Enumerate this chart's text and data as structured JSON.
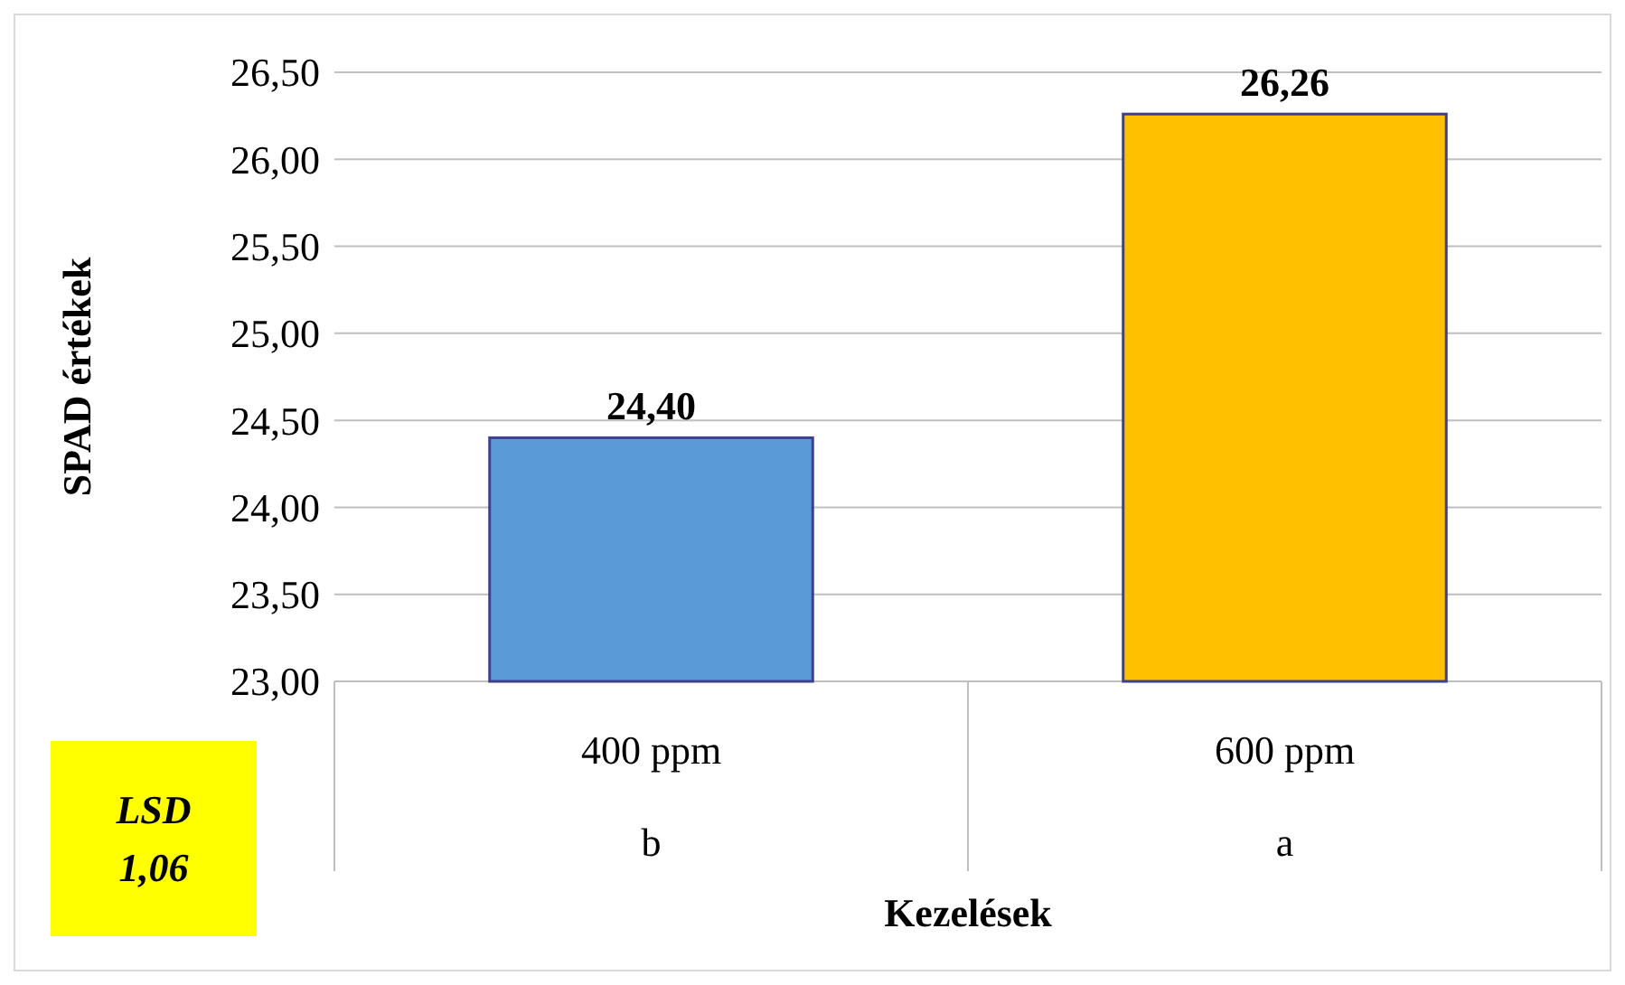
{
  "chart_data": {
    "type": "bar",
    "ylabel": "SPAD értékek",
    "xlabel": "Kezelések",
    "categories": [
      "400 ppm",
      "600 ppm"
    ],
    "values": [
      24.4,
      26.26
    ],
    "colors": [
      "#5b9bd5",
      "#ffc000"
    ],
    "value_labels": [
      "24,40",
      "26,26"
    ],
    "ylim": [
      23,
      26.5
    ],
    "yticks": [
      {
        "value": 23,
        "label": "23,00"
      },
      {
        "value": 23.5,
        "label": "23,50"
      },
      {
        "value": 24,
        "label": "24,00"
      },
      {
        "value": 24.5,
        "label": "24,50"
      },
      {
        "value": 25,
        "label": "25,00"
      },
      {
        "value": 25.5,
        "label": "25,50"
      },
      {
        "value": 26,
        "label": "26,00"
      },
      {
        "value": 26.5,
        "label": "26,50"
      }
    ],
    "grid": "y",
    "annotations": [
      "b",
      "a",
      "LSD 1,06"
    ]
  }
}
